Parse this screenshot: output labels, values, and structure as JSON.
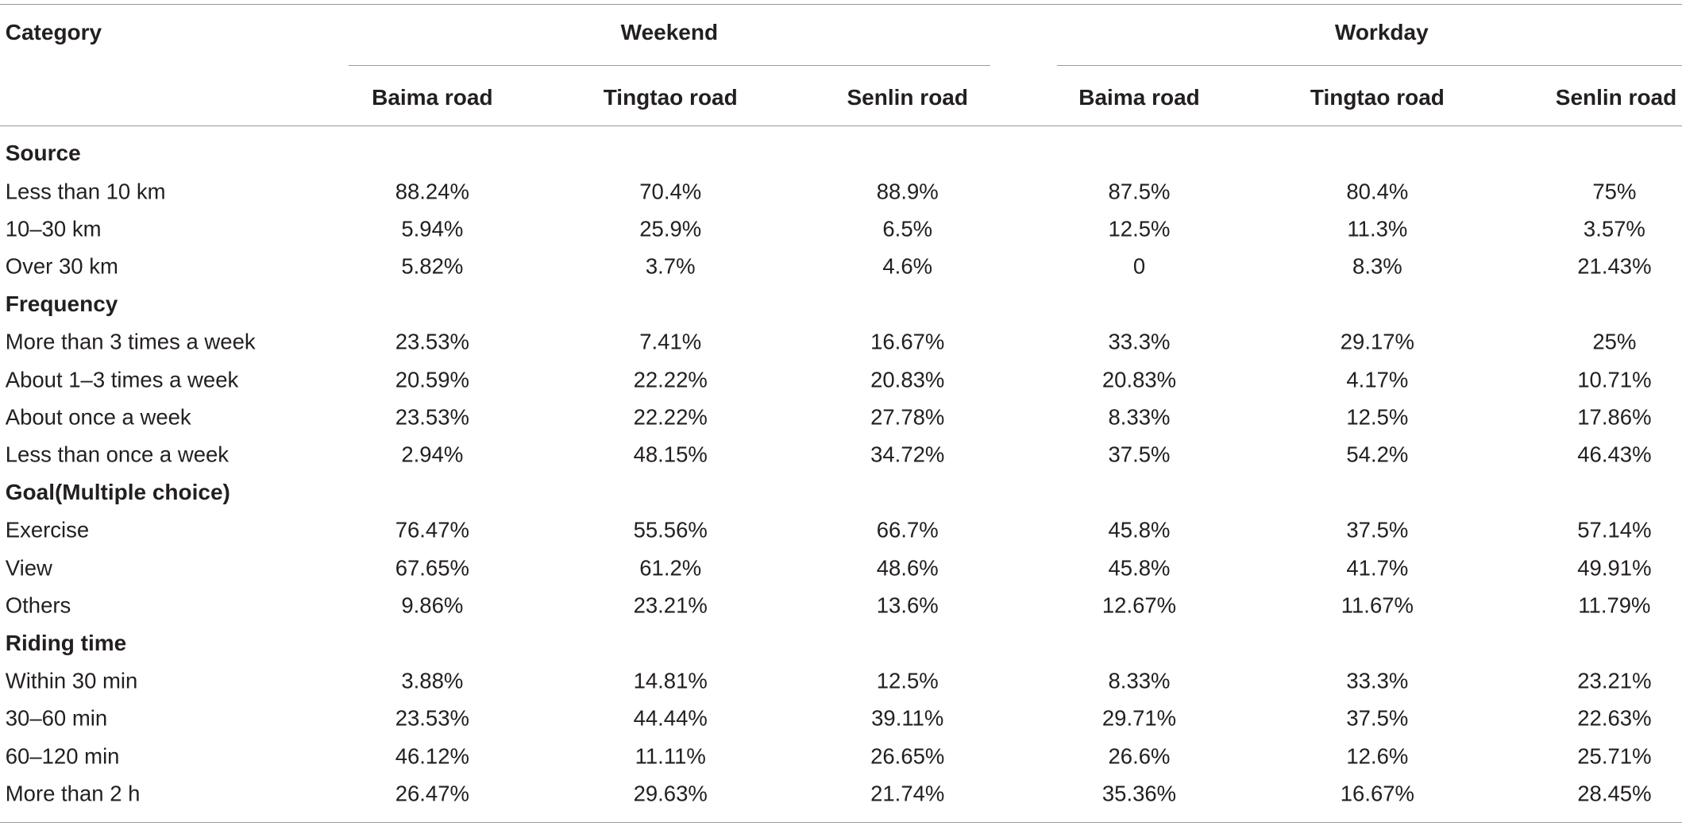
{
  "header": {
    "category": "Category",
    "groups": [
      "Weekend",
      "Workday"
    ],
    "columns": [
      "Baima road",
      "Tingtao road",
      "Senlin road",
      "Baima road",
      "Tingtao road",
      "Senlin road"
    ]
  },
  "sections": [
    {
      "title": "Source",
      "rows": [
        {
          "label": "Less than 10 km",
          "values": [
            "88.24%",
            "70.4%",
            "88.9%",
            "87.5%",
            "80.4%",
            "75%"
          ]
        },
        {
          "label": "10–30 km",
          "values": [
            "5.94%",
            "25.9%",
            "6.5%",
            "12.5%",
            "11.3%",
            "3.57%"
          ]
        },
        {
          "label": "Over 30 km",
          "values": [
            "5.82%",
            "3.7%",
            "4.6%",
            "0",
            "8.3%",
            "21.43%"
          ]
        }
      ]
    },
    {
      "title": "Frequency",
      "rows": [
        {
          "label": "More than 3 times a week",
          "values": [
            "23.53%",
            "7.41%",
            "16.67%",
            "33.3%",
            "29.17%",
            "25%"
          ]
        },
        {
          "label": "About 1–3 times a week",
          "values": [
            "20.59%",
            "22.22%",
            "20.83%",
            "20.83%",
            "4.17%",
            "10.71%"
          ]
        },
        {
          "label": "About once a week",
          "values": [
            "23.53%",
            "22.22%",
            "27.78%",
            "8.33%",
            "12.5%",
            "17.86%"
          ]
        },
        {
          "label": "Less than once a week",
          "values": [
            "2.94%",
            "48.15%",
            "34.72%",
            "37.5%",
            "54.2%",
            "46.43%"
          ]
        }
      ]
    },
    {
      "title": "Goal(Multiple choice)",
      "rows": [
        {
          "label": "Exercise",
          "values": [
            "76.47%",
            "55.56%",
            "66.7%",
            "45.8%",
            "37.5%",
            "57.14%"
          ]
        },
        {
          "label": "View",
          "values": [
            "67.65%",
            "61.2%",
            "48.6%",
            "45.8%",
            "41.7%",
            "49.91%"
          ]
        },
        {
          "label": "Others",
          "values": [
            "9.86%",
            "23.21%",
            "13.6%",
            "12.67%",
            "11.67%",
            "11.79%"
          ]
        }
      ]
    },
    {
      "title": "Riding time",
      "rows": [
        {
          "label": "Within 30 min",
          "values": [
            "3.88%",
            "14.81%",
            "12.5%",
            "8.33%",
            "33.3%",
            "23.21%"
          ]
        },
        {
          "label": "30–60 min",
          "values": [
            "23.53%",
            "44.44%",
            "39.11%",
            "29.71%",
            "37.5%",
            "22.63%"
          ]
        },
        {
          "label": "60–120 min",
          "values": [
            "46.12%",
            "11.11%",
            "26.65%",
            "26.6%",
            "12.6%",
            "25.71%"
          ]
        },
        {
          "label": "More than 2 h",
          "values": [
            "26.47%",
            "29.63%",
            "21.74%",
            "35.36%",
            "16.67%",
            "28.45%"
          ]
        }
      ]
    }
  ]
}
